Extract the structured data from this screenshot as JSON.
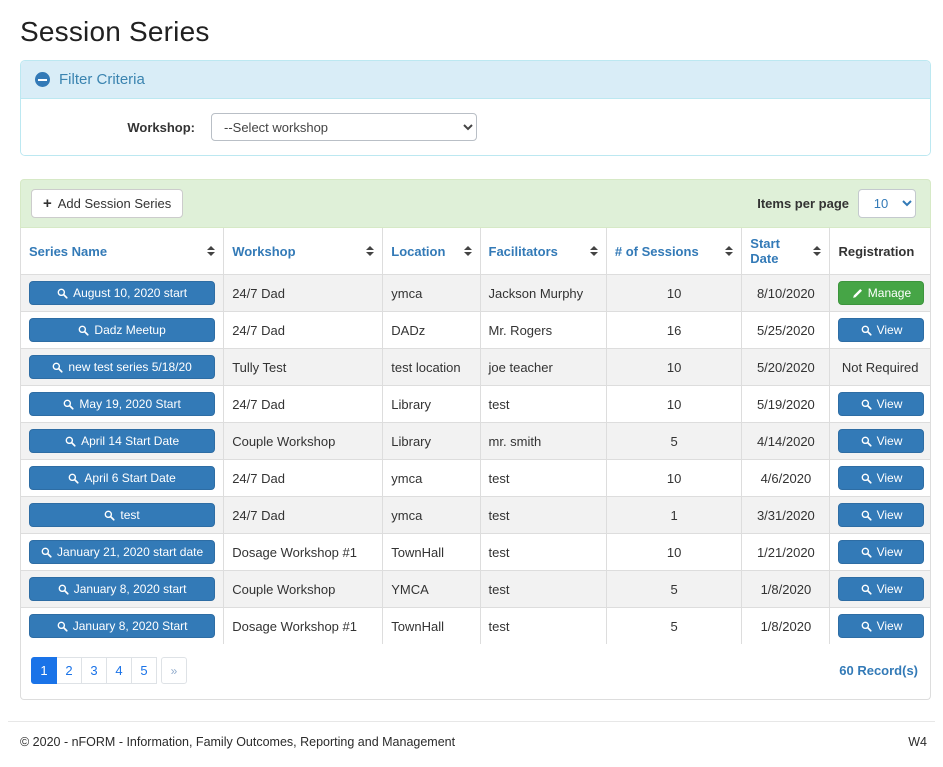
{
  "colors": {
    "accent_blue": "#337ab7",
    "success_green": "#46a546",
    "active_page_blue": "#1a73e8",
    "filter_header_bg": "#d9edf7",
    "table_header_bar_bg": "#dff0d8"
  },
  "page": {
    "title": "Session Series"
  },
  "filter": {
    "title": "Filter Criteria",
    "collapse_icon": "minus-circle-icon",
    "workshop_label": "Workshop:",
    "workshop_selected": "--Select workshop"
  },
  "toolbar": {
    "add_button_icon": "plus-icon",
    "add_button_label": "Add Session Series",
    "items_per_page_label": "Items per page",
    "items_per_page_value": "10"
  },
  "table": {
    "columns": [
      {
        "label": "Series Name",
        "sortable": true
      },
      {
        "label": "Workshop",
        "sortable": true
      },
      {
        "label": "Location",
        "sortable": true
      },
      {
        "label": "Facilitators",
        "sortable": true
      },
      {
        "label": "# of Sessions",
        "sortable": true
      },
      {
        "label": "Start Date",
        "sortable": true
      },
      {
        "label": "Registration",
        "sortable": false
      }
    ],
    "rows": [
      {
        "series_name": "August 10, 2020 start",
        "workshop": "24/7 Dad",
        "location": "ymca",
        "facilitators": "Jackson Murphy",
        "sessions": "10",
        "start_date": "8/10/2020",
        "registration": {
          "type": "manage",
          "label": "Manage"
        }
      },
      {
        "series_name": "Dadz Meetup",
        "workshop": "24/7 Dad",
        "location": "DADz",
        "facilitators": "Mr. Rogers",
        "sessions": "16",
        "start_date": "5/25/2020",
        "registration": {
          "type": "view",
          "label": "View"
        }
      },
      {
        "series_name": "new test series 5/18/20",
        "workshop": "Tully Test",
        "location": "test location",
        "facilitators": "joe teacher",
        "sessions": "10",
        "start_date": "5/20/2020",
        "registration": {
          "type": "text",
          "label": "Not Required"
        }
      },
      {
        "series_name": "May 19, 2020 Start",
        "workshop": "24/7 Dad",
        "location": "Library",
        "facilitators": "test",
        "sessions": "10",
        "start_date": "5/19/2020",
        "registration": {
          "type": "view",
          "label": "View"
        }
      },
      {
        "series_name": "April 14 Start Date",
        "workshop": "Couple Workshop",
        "location": "Library",
        "facilitators": "mr. smith",
        "sessions": "5",
        "start_date": "4/14/2020",
        "registration": {
          "type": "view",
          "label": "View"
        }
      },
      {
        "series_name": "April 6 Start Date",
        "workshop": "24/7 Dad",
        "location": "ymca",
        "facilitators": "test",
        "sessions": "10",
        "start_date": "4/6/2020",
        "registration": {
          "type": "view",
          "label": "View"
        }
      },
      {
        "series_name": "test",
        "workshop": "24/7 Dad",
        "location": "ymca",
        "facilitators": "test",
        "sessions": "1",
        "start_date": "3/31/2020",
        "registration": {
          "type": "view",
          "label": "View"
        }
      },
      {
        "series_name": "January 21, 2020 start date",
        "workshop": "Dosage Workshop #1",
        "location": "TownHall",
        "facilitators": "test",
        "sessions": "10",
        "start_date": "1/21/2020",
        "registration": {
          "type": "view",
          "label": "View"
        }
      },
      {
        "series_name": "January 8, 2020 start",
        "workshop": "Couple Workshop",
        "location": "YMCA",
        "facilitators": "test",
        "sessions": "5",
        "start_date": "1/8/2020",
        "registration": {
          "type": "view",
          "label": "View"
        }
      },
      {
        "series_name": "January 8, 2020 Start",
        "workshop": "Dosage Workshop #1",
        "location": "TownHall",
        "facilitators": "test",
        "sessions": "5",
        "start_date": "1/8/2020",
        "registration": {
          "type": "view",
          "label": "View"
        }
      }
    ]
  },
  "pagination": {
    "pages": [
      {
        "label": "1",
        "active": true
      },
      {
        "label": "2",
        "active": false
      },
      {
        "label": "3",
        "active": false
      },
      {
        "label": "4",
        "active": false
      },
      {
        "label": "5",
        "active": false
      },
      {
        "label": "»",
        "active": false
      }
    ],
    "record_count": "60 Record(s)"
  },
  "footer": {
    "copyright": "© 2020 - nFORM - Information, Family Outcomes, Reporting and Management",
    "environment": "W4"
  }
}
